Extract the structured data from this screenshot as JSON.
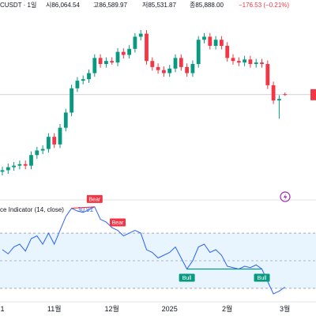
{
  "chart_data": {
    "type": "candlestick",
    "header": [
      "CUSDT · 1일",
      "시86,064.54",
      "고86,589.97",
      "저85,531.87",
      "종85,888.00",
      "−176.53 (−0.21%)"
    ],
    "categories": [
      "1",
      null,
      null,
      null,
      null,
      null,
      null,
      null,
      null,
      "11월",
      null,
      null,
      null,
      null,
      null,
      null,
      null,
      null,
      null,
      "12월",
      null,
      null,
      null,
      null,
      null,
      null,
      null,
      null,
      null,
      "2025",
      null,
      null,
      null,
      null,
      null,
      null,
      null,
      null,
      null,
      "2월",
      null,
      null,
      null,
      null,
      null,
      null,
      null,
      null,
      null,
      "3월"
    ],
    "open": [
      60500,
      61000,
      62000,
      62500,
      63000,
      62500,
      66000,
      67500,
      68000,
      72000,
      69500,
      75000,
      80000,
      88000,
      90500,
      91000,
      93000,
      98000,
      96000,
      97000,
      96500,
      100000,
      99000,
      101000,
      105000,
      106000,
      97000,
      95000,
      94000,
      93000,
      94500,
      98000,
      95000,
      93000,
      96000,
      104000,
      105000,
      102000,
      104000,
      102000,
      98000,
      97000,
      96500,
      97500,
      96000,
      96500,
      96000,
      89000,
      84000,
      86064.54
    ],
    "high": [
      62200,
      63200,
      63700,
      64200,
      64200,
      67200,
      68700,
      69200,
      73200,
      73200,
      76200,
      81200,
      89200,
      91700,
      92200,
      94200,
      99200,
      99200,
      98200,
      98200,
      101200,
      101200,
      102200,
      106200,
      107200,
      107200,
      98200,
      96200,
      95200,
      95700,
      99200,
      99200,
      96200,
      97200,
      105200,
      106200,
      106200,
      105200,
      105200,
      103200,
      99200,
      98200,
      98700,
      98700,
      97700,
      97700,
      97200,
      90200,
      85700,
      86589.97
    ],
    "low": [
      59300,
      59800,
      60800,
      61300,
      61300,
      61300,
      64800,
      66300,
      66800,
      68300,
      68300,
      73800,
      78800,
      86800,
      89300,
      89800,
      91800,
      94800,
      94800,
      95800,
      95300,
      97800,
      97800,
      99800,
      103800,
      95800,
      93800,
      92800,
      91800,
      91800,
      93300,
      93800,
      91800,
      91800,
      94800,
      102800,
      100800,
      100800,
      100800,
      96800,
      95800,
      95300,
      95300,
      94800,
      94800,
      94800,
      87800,
      82800,
      78000,
      85531.87
    ],
    "close": [
      61000,
      62000,
      62500,
      63000,
      62500,
      66000,
      67500,
      68000,
      72000,
      69500,
      75000,
      80000,
      88000,
      90500,
      91000,
      93000,
      98000,
      96000,
      97000,
      96500,
      100000,
      99000,
      101000,
      105000,
      106000,
      97000,
      95000,
      94000,
      93000,
      94500,
      98000,
      95000,
      93000,
      96000,
      104000,
      105000,
      102000,
      104000,
      102000,
      98000,
      97000,
      96500,
      97500,
      96000,
      96500,
      96000,
      89000,
      84000,
      84500,
      85888
    ],
    "up_color": "#089981",
    "down_color": "#f23645",
    "ylim": [
      53300,
      117100
    ],
    "indicator": {
      "title": "ce Indicator (14, close)",
      "value_label": "30.91",
      "color": "#2962ff",
      "values": [
        58,
        55,
        60,
        62,
        57,
        66,
        68,
        62,
        70,
        62,
        72,
        82,
        88,
        86,
        85,
        87,
        89,
        80,
        78,
        74,
        72,
        68,
        70,
        72,
        70,
        58,
        56,
        52,
        54,
        56,
        60,
        52,
        44,
        50,
        60,
        62,
        56,
        58,
        54,
        46,
        45,
        44,
        46,
        45,
        47,
        44,
        35,
        26,
        28,
        30.91
      ],
      "ylim": [
        21.4,
        92.9
      ],
      "levels": [
        70,
        50,
        30
      ],
      "divergences": [
        {
          "label": "Bear",
          "from": 12,
          "to": 16,
          "kind": "bear"
        },
        {
          "label": "Bear",
          "to": 20,
          "kind": "bear"
        },
        {
          "label": "Bull",
          "to": 32,
          "kind": "bull"
        },
        {
          "label": "Bull",
          "from": 32,
          "to": 45,
          "kind": "bull"
        }
      ]
    }
  }
}
